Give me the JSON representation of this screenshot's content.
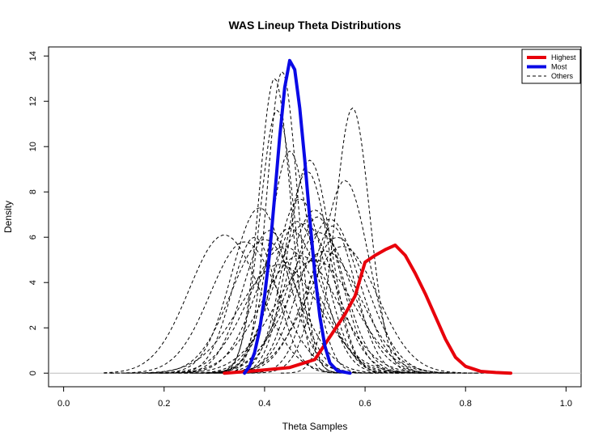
{
  "chart_data": {
    "type": "line",
    "title": "WAS Lineup Theta Distributions",
    "xlabel": "Theta Samples",
    "ylabel": "Density",
    "xlim": [
      -0.03,
      1.03
    ],
    "ylim": [
      -0.6,
      14.4
    ],
    "x_ticks": [
      0.0,
      0.2,
      0.4,
      0.6,
      0.8,
      1.0
    ],
    "x_tick_labels": [
      "0.0",
      "0.2",
      "0.4",
      "0.6",
      "0.8",
      "1.0"
    ],
    "y_ticks": [
      0,
      2,
      4,
      6,
      8,
      10,
      12,
      14
    ],
    "y_tick_labels": [
      "0",
      "2",
      "4",
      "6",
      "8",
      "10",
      "12",
      "14"
    ],
    "legend_position": "top-right",
    "legend": [
      {
        "label": "Highest",
        "color": "#e8000b",
        "style": "solid"
      },
      {
        "label": "Most",
        "color": "#0a0ae6",
        "style": "solid"
      },
      {
        "label": "Others",
        "color": "#000000",
        "style": "dashed"
      }
    ],
    "series": [
      {
        "name": "Highest",
        "color": "#e8000b",
        "style": "solid",
        "points": [
          [
            0.32,
            0.0
          ],
          [
            0.38,
            0.1
          ],
          [
            0.45,
            0.25
          ],
          [
            0.5,
            0.6
          ],
          [
            0.53,
            1.6
          ],
          [
            0.56,
            2.6
          ],
          [
            0.58,
            3.4
          ],
          [
            0.6,
            4.9
          ],
          [
            0.62,
            5.2
          ],
          [
            0.64,
            5.45
          ],
          [
            0.66,
            5.65
          ],
          [
            0.68,
            5.2
          ],
          [
            0.7,
            4.4
          ],
          [
            0.72,
            3.5
          ],
          [
            0.74,
            2.5
          ],
          [
            0.76,
            1.5
          ],
          [
            0.78,
            0.7
          ],
          [
            0.8,
            0.3
          ],
          [
            0.83,
            0.08
          ],
          [
            0.86,
            0.03
          ],
          [
            0.89,
            0.0
          ]
        ]
      },
      {
        "name": "Most",
        "color": "#0a0ae6",
        "style": "solid",
        "points": [
          [
            0.36,
            0.0
          ],
          [
            0.37,
            0.3
          ],
          [
            0.38,
            0.9
          ],
          [
            0.39,
            1.9
          ],
          [
            0.4,
            3.4
          ],
          [
            0.41,
            5.3
          ],
          [
            0.42,
            7.8
          ],
          [
            0.43,
            10.4
          ],
          [
            0.44,
            12.6
          ],
          [
            0.45,
            13.8
          ],
          [
            0.46,
            13.4
          ],
          [
            0.47,
            11.7
          ],
          [
            0.48,
            9.4
          ],
          [
            0.49,
            6.8
          ],
          [
            0.5,
            4.4
          ],
          [
            0.51,
            2.5
          ],
          [
            0.52,
            1.2
          ],
          [
            0.53,
            0.45
          ],
          [
            0.545,
            0.1
          ],
          [
            0.57,
            0.0
          ]
        ]
      }
    ],
    "others": {
      "name": "Others",
      "color": "#000000",
      "style": "dashed",
      "curves": [
        {
          "mean": 0.42,
          "sd": 0.031,
          "peak": 13.0
        },
        {
          "mean": 0.435,
          "sd": 0.03,
          "peak": 13.3
        },
        {
          "mean": 0.575,
          "sd": 0.034,
          "peak": 11.7
        },
        {
          "mean": 0.425,
          "sd": 0.034,
          "peak": 11.6
        },
        {
          "mean": 0.49,
          "sd": 0.042,
          "peak": 9.4
        },
        {
          "mean": 0.485,
          "sd": 0.044,
          "peak": 8.9
        },
        {
          "mean": 0.56,
          "sd": 0.047,
          "peak": 8.5
        },
        {
          "mean": 0.47,
          "sd": 0.05,
          "peak": 7.7
        },
        {
          "mean": 0.5,
          "sd": 0.054,
          "peak": 7.2
        },
        {
          "mean": 0.39,
          "sd": 0.055,
          "peak": 7.3
        },
        {
          "mean": 0.53,
          "sd": 0.058,
          "peak": 6.8
        },
        {
          "mean": 0.48,
          "sd": 0.06,
          "peak": 6.6
        },
        {
          "mean": 0.45,
          "sd": 0.062,
          "peak": 6.4
        },
        {
          "mean": 0.51,
          "sd": 0.064,
          "peak": 6.2
        },
        {
          "mean": 0.545,
          "sd": 0.062,
          "peak": 6.0
        },
        {
          "mean": 0.4,
          "sd": 0.066,
          "peak": 5.9
        },
        {
          "mean": 0.44,
          "sd": 0.07,
          "peak": 5.6
        },
        {
          "mean": 0.32,
          "sd": 0.07,
          "peak": 6.1
        },
        {
          "mean": 0.36,
          "sd": 0.068,
          "peak": 5.8
        },
        {
          "mean": 0.52,
          "sd": 0.072,
          "peak": 5.4
        },
        {
          "mean": 0.47,
          "sd": 0.075,
          "peak": 5.2
        },
        {
          "mean": 0.5,
          "sd": 0.078,
          "peak": 5.0
        },
        {
          "mean": 0.43,
          "sd": 0.08,
          "peak": 4.8
        },
        {
          "mean": 0.555,
          "sd": 0.07,
          "peak": 5.6
        },
        {
          "mean": 0.465,
          "sd": 0.05,
          "peak": 6.7
        },
        {
          "mean": 0.505,
          "sd": 0.048,
          "peak": 6.9
        },
        {
          "mean": 0.41,
          "sd": 0.052,
          "peak": 6.3
        },
        {
          "mean": 0.535,
          "sd": 0.045,
          "peak": 6.5
        },
        {
          "mean": 0.45,
          "sd": 0.04,
          "peak": 9.8
        },
        {
          "mean": 0.38,
          "sd": 0.045,
          "peak": 6.0
        }
      ]
    }
  }
}
